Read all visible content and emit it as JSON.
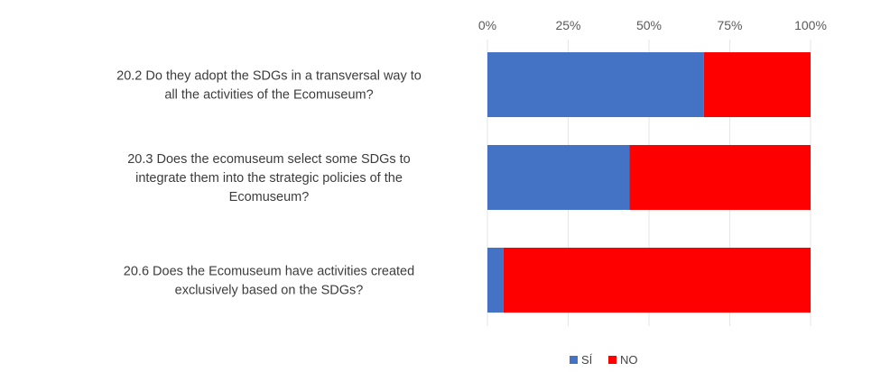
{
  "chart_data": {
    "type": "bar",
    "orientation": "horizontal",
    "stacked": "percent",
    "categories": [
      [
        "20.2 Do they adopt the SDGs in a transversal way to",
        "all the activities of the Ecomuseum?"
      ],
      [
        "20.3 Does the ecomuseum select some SDGs to",
        "integrate them into the strategic policies of the",
        "Ecomuseum?"
      ],
      [
        "20.6 Does the Ecomuseum have activities created",
        "exclusively based on the SDGs?"
      ]
    ],
    "series": [
      {
        "name": "SÍ",
        "color": "#4472c4",
        "values": [
          67,
          44,
          5
        ]
      },
      {
        "name": "NO",
        "color": "#ff0000",
        "values": [
          33,
          56,
          95
        ]
      }
    ],
    "x_ticks": [
      "0%",
      "25%",
      "50%",
      "75%",
      "100%"
    ],
    "xlim": [
      0,
      100
    ],
    "x_axis_position": "top",
    "grid": true,
    "legend_position": "bottom"
  }
}
